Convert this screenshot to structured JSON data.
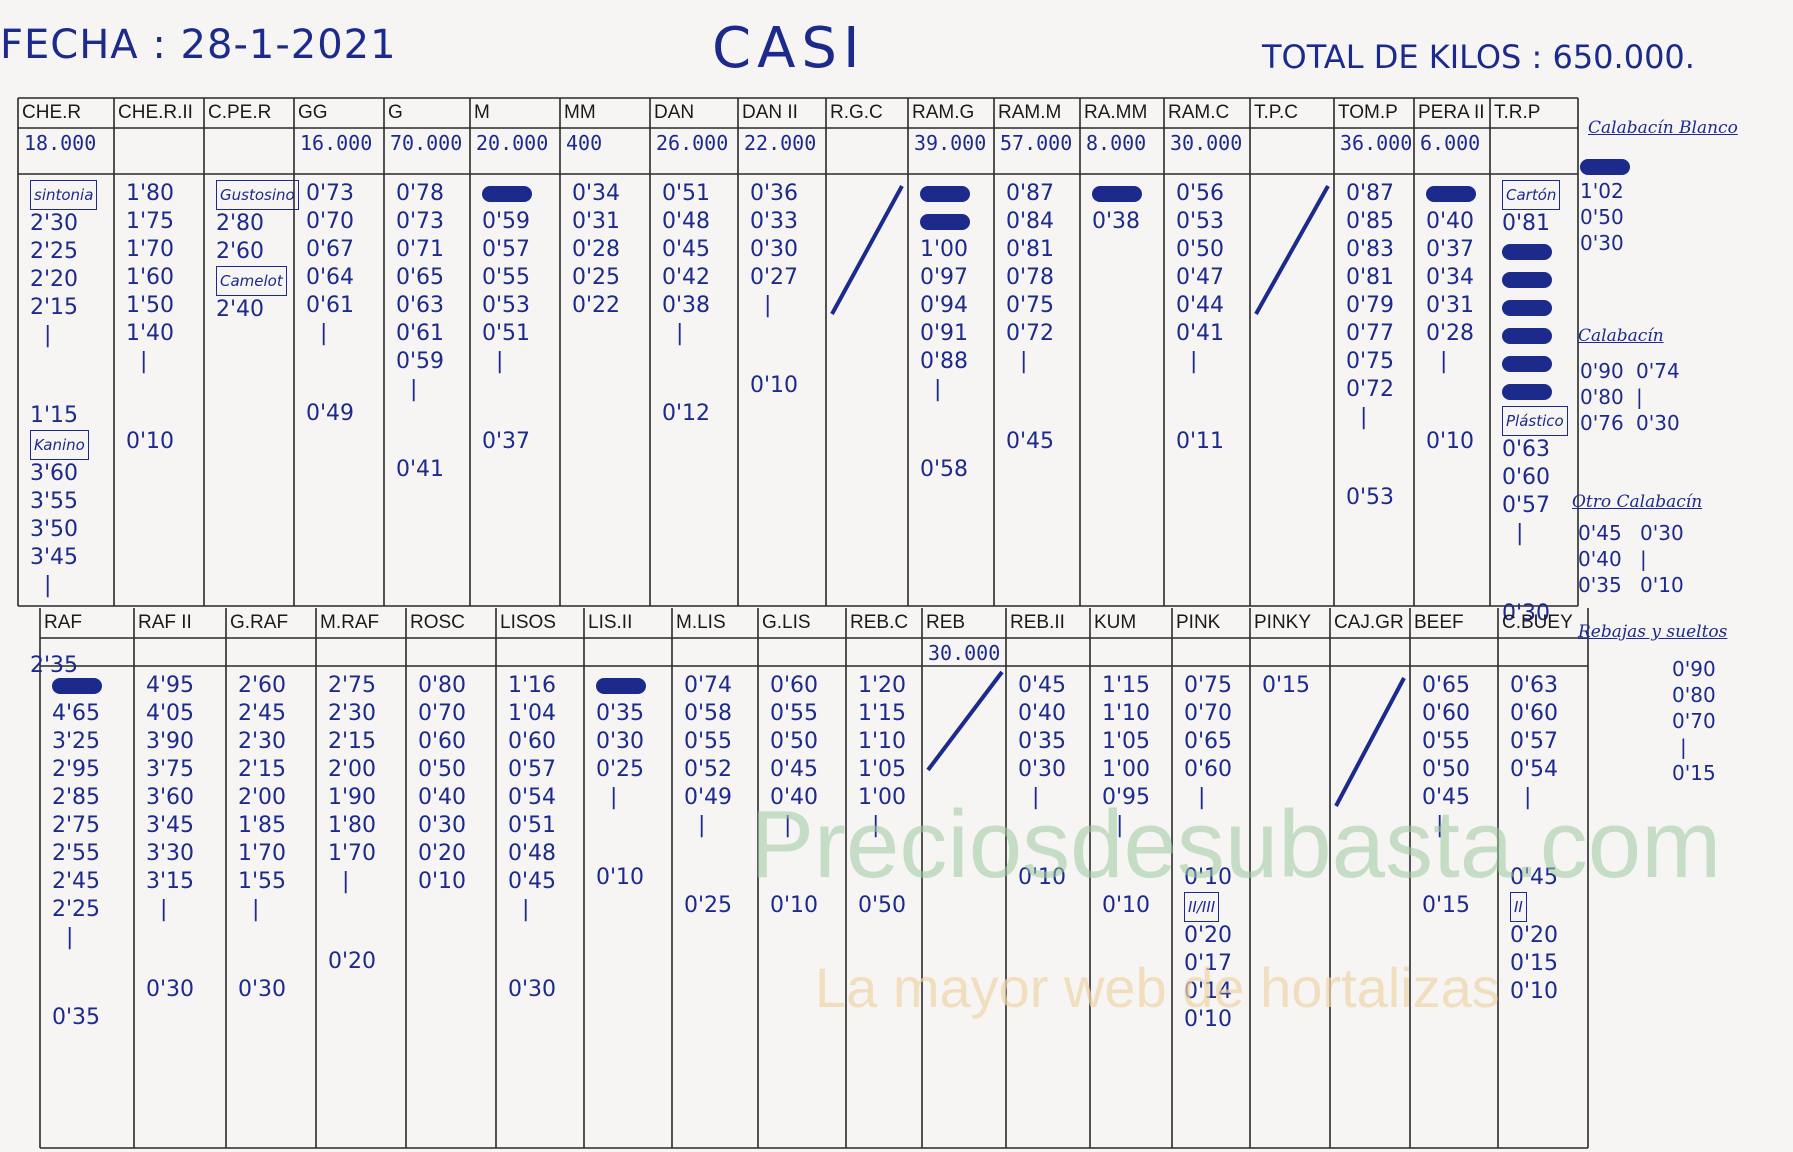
{
  "header": {
    "fecha": "FECHA : 28-1-2021",
    "title": "CASI",
    "total": "TOTAL DE KILOS : 650.000."
  },
  "top_columns": [
    {
      "code": "CHE.R",
      "kilos": "18.000",
      "values": [
        "sintonia",
        "2'30",
        "2'25",
        "2'20",
        "2'15",
        "|",
        "1'15",
        "Kanino",
        "3'60",
        "3'55",
        "3'50",
        "3'45",
        "|",
        "2'35"
      ]
    },
    {
      "code": "CHE.R.II",
      "kilos": "",
      "values": [
        "1'80",
        "1'75",
        "1'70",
        "1'60",
        "1'50",
        "1'40",
        "|",
        "0'10"
      ]
    },
    {
      "code": "C.PE.R",
      "kilos": "",
      "values": [
        "Gustosino",
        "2'80",
        "2'60",
        "Camelot",
        "2'40"
      ]
    },
    {
      "code": "GG",
      "kilos": "16.000",
      "values": [
        "0'73",
        "0'70",
        "0'67",
        "0'64",
        "0'61",
        "|",
        "0'49"
      ]
    },
    {
      "code": "G",
      "kilos": "70.000",
      "values": [
        "0'78",
        "0'73",
        "0'71",
        "0'65",
        "0'63",
        "0'61",
        "0'59",
        "|",
        "0'41"
      ]
    },
    {
      "code": "M",
      "kilos": "20.000",
      "values": [
        "",
        "0'59",
        "0'57",
        "0'55",
        "0'53",
        "0'51",
        "|",
        "0'37"
      ]
    },
    {
      "code": "MM",
      "kilos": "400",
      "values": [
        "0'34",
        "0'31",
        "0'28",
        "0'25",
        "0'22"
      ]
    },
    {
      "code": "DAN",
      "kilos": "26.000",
      "values": [
        "0'51",
        "0'48",
        "0'45",
        "0'42",
        "0'38",
        "|",
        "0'12"
      ]
    },
    {
      "code": "DAN II",
      "kilos": "22.000",
      "values": [
        "0'36",
        "0'33",
        "0'30",
        "0'27",
        "|",
        "0'10"
      ]
    },
    {
      "code": "R.G.C",
      "kilos": "",
      "values": []
    },
    {
      "code": "RAM.G",
      "kilos": "39.000",
      "values": [
        "",
        "",
        "1'00",
        "0'97",
        "0'94",
        "0'91",
        "0'88",
        "|",
        "0'58"
      ]
    },
    {
      "code": "RAM.M",
      "kilos": "57.000",
      "values": [
        "0'87",
        "0'84",
        "0'81",
        "0'78",
        "0'75",
        "0'72",
        "|",
        "0'45"
      ]
    },
    {
      "code": "RA.MM",
      "kilos": "8.000",
      "values": [
        "",
        "0'38"
      ]
    },
    {
      "code": "RAM.C",
      "kilos": "30.000",
      "values": [
        "0'56",
        "0'53",
        "0'50",
        "0'47",
        "0'44",
        "0'41",
        "|",
        "0'11"
      ]
    },
    {
      "code": "T.P.C",
      "kilos": "",
      "values": []
    },
    {
      "code": "TOM.P",
      "kilos": "36.000",
      "values": [
        "0'87",
        "0'85",
        "0'83",
        "0'81",
        "0'79",
        "0'77",
        "0'75",
        "0'72",
        "|",
        "0'53"
      ]
    },
    {
      "code": "PERA II",
      "kilos": "6.000",
      "values": [
        "",
        "0'40",
        "0'37",
        "0'34",
        "0'31",
        "0'28",
        "|",
        "0'10"
      ]
    },
    {
      "code": "T.R.P",
      "kilos": "",
      "values": [
        "Cartón",
        "0'81",
        "",
        "",
        "",
        "",
        "",
        "",
        "Plástico",
        "0'63",
        "0'60",
        "0'57",
        "|",
        "0'30"
      ]
    }
  ],
  "bottom_columns": [
    {
      "code": "RAF",
      "kilos": "",
      "values": [
        "",
        "4'65",
        "3'25",
        "2'95",
        "2'85",
        "2'75",
        "2'55",
        "2'45",
        "2'25",
        "|",
        "0'35"
      ]
    },
    {
      "code": "RAF II",
      "kilos": "",
      "values": [
        "4'95",
        "4'05",
        "3'90",
        "3'75",
        "3'60",
        "3'45",
        "3'30",
        "3'15",
        "|",
        "0'30"
      ]
    },
    {
      "code": "G.RAF",
      "kilos": "",
      "values": [
        "2'60",
        "2'45",
        "2'30",
        "2'15",
        "2'00",
        "1'85",
        "1'70",
        "1'55",
        "|",
        "0'30"
      ]
    },
    {
      "code": "M.RAF",
      "kilos": "",
      "values": [
        "2'75",
        "2'30",
        "2'15",
        "2'00",
        "1'90",
        "1'80",
        "1'70",
        "|",
        "0'20"
      ]
    },
    {
      "code": "ROSC",
      "kilos": "",
      "values": [
        "0'80",
        "0'70",
        "0'60",
        "0'50",
        "0'40",
        "0'30",
        "0'20",
        "0'10"
      ]
    },
    {
      "code": "LISOS",
      "kilos": "",
      "values": [
        "1'16",
        "1'04",
        "0'60",
        "0'57",
        "0'54",
        "0'51",
        "0'48",
        "0'45",
        "|",
        "0'30"
      ]
    },
    {
      "code": "LIS.II",
      "kilos": "",
      "values": [
        "",
        "0'35",
        "0'30",
        "0'25",
        "|",
        "0'10"
      ]
    },
    {
      "code": "M.LIS",
      "kilos": "",
      "values": [
        "0'74",
        "0'58",
        "0'55",
        "0'52",
        "0'49",
        "|",
        "0'25"
      ]
    },
    {
      "code": "G.LIS",
      "kilos": "",
      "values": [
        "0'60",
        "0'55",
        "0'50",
        "0'45",
        "0'40",
        "|",
        "0'10"
      ]
    },
    {
      "code": "REB.C",
      "kilos": "",
      "values": [
        "1'20",
        "1'15",
        "1'10",
        "1'05",
        "1'00",
        "|",
        "0'50"
      ]
    },
    {
      "code": "REB",
      "kilos": "30.000",
      "values": []
    },
    {
      "code": "REB.II",
      "kilos": "",
      "values": [
        "0'45",
        "0'40",
        "0'35",
        "0'30",
        "|",
        "0'10"
      ]
    },
    {
      "code": "KUM",
      "kilos": "",
      "values": [
        "1'15",
        "1'10",
        "1'05",
        "1'00",
        "0'95",
        "|",
        "0'10"
      ]
    },
    {
      "code": "PINK",
      "kilos": "",
      "values": [
        "0'75",
        "0'70",
        "0'65",
        "0'60",
        "|",
        "0'10",
        "II/III",
        "0'20",
        "0'17",
        "0'14",
        "0'10"
      ]
    },
    {
      "code": "PINKY",
      "kilos": "",
      "values": [
        "0'15"
      ]
    },
    {
      "code": "CAJ.GR",
      "kilos": "",
      "values": []
    },
    {
      "code": "BEEF",
      "kilos": "",
      "values": [
        "0'65",
        "0'60",
        "0'55",
        "0'50",
        "0'45",
        "|",
        "0'15"
      ]
    },
    {
      "code": "C.BUEY",
      "kilos": "",
      "values": [
        "0'63",
        "0'60",
        "0'57",
        "0'54",
        "|",
        "0'45",
        "II",
        "0'20",
        "0'15",
        "0'10"
      ]
    }
  ],
  "side_notes": {
    "calabacin_blanco": {
      "label": "Calabacín Blanco",
      "values": [
        "",
        "1'02",
        "0'50",
        "0'30"
      ]
    },
    "calabacin": {
      "label": "Calabacín",
      "values_left": [
        "0'90",
        "0'80",
        "0'76"
      ],
      "values_right": [
        "0'74",
        "|",
        "0'30"
      ]
    },
    "otro_calabacin": {
      "label": "Otro Calabacín",
      "values_left": [
        "0'45",
        "0'40",
        "0'35"
      ],
      "values_right": [
        "0'30",
        "|",
        "0'10"
      ]
    },
    "rebajas_sueltos": {
      "label": "Rebajas y sueltos",
      "values": [
        "0'90",
        "0'80",
        "0'70",
        "|",
        "0'15"
      ]
    }
  },
  "watermark": {
    "line1": "Preciosdesubasta.com",
    "line2": "La mayor web de hortalizas"
  }
}
